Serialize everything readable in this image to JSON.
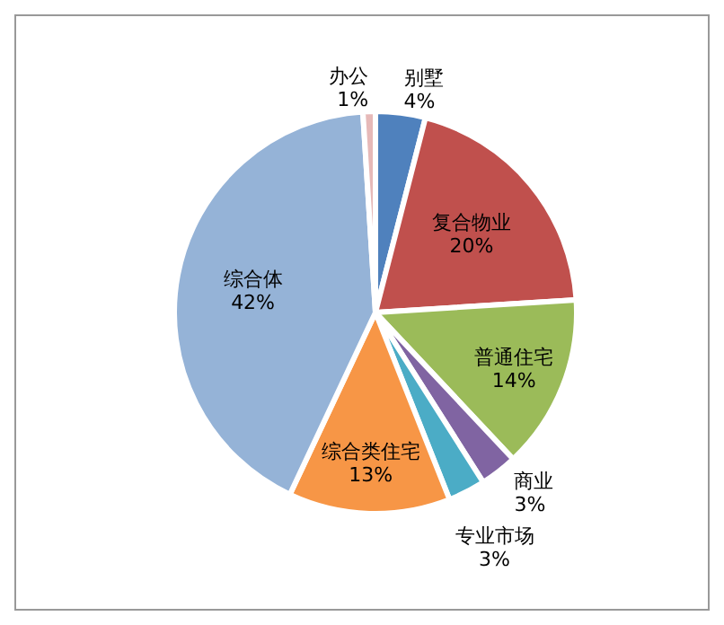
{
  "chart_data": {
    "type": "pie",
    "categories": [
      "别墅",
      "复合物业",
      "普通住宅",
      "商业",
      "专业市场",
      "综合类住宅",
      "综合体",
      "办公"
    ],
    "values": [
      4,
      20,
      14,
      3,
      3,
      13,
      42,
      1
    ],
    "colors": [
      "#4f81bd",
      "#c0504d",
      "#9bbb59",
      "#8064a2",
      "#4bacc6",
      "#f79646",
      "#95b3d7",
      "#e6b9b8"
    ],
    "value_labels": [
      "4%",
      "20%",
      "14%",
      "3%",
      "3%",
      "13%",
      "42%",
      "1%"
    ],
    "legend": false
  }
}
